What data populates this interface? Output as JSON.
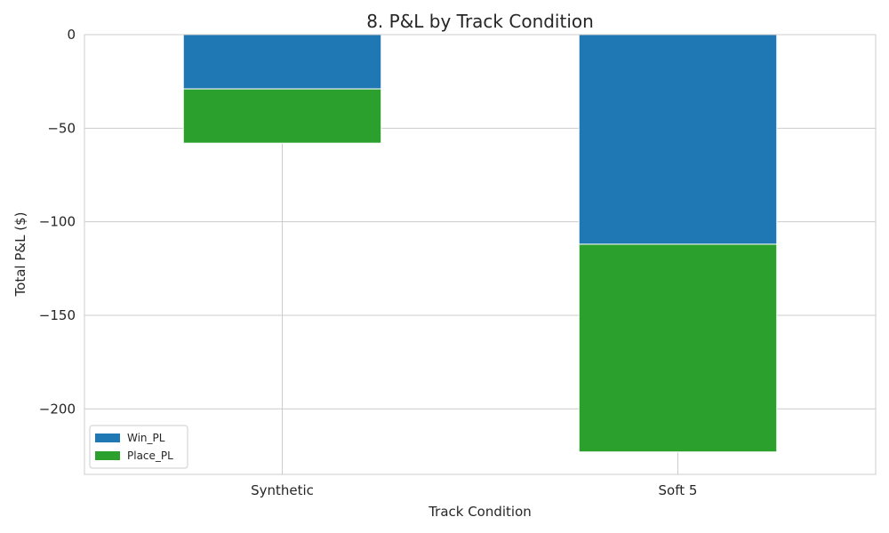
{
  "chart_data": {
    "type": "bar",
    "stacked": true,
    "title": "8. P&L by Track Condition",
    "xlabel": "Track Condition",
    "ylabel": "Total P&L ($)",
    "categories": [
      "Synthetic",
      "Soft 5"
    ],
    "series": [
      {
        "name": "Win_PL",
        "color": "#1f77b4",
        "values": [
          -29,
          -112
        ]
      },
      {
        "name": "Place_PL",
        "color": "#2ca02c",
        "values": [
          -29,
          -111
        ]
      }
    ],
    "ylim": [
      -235,
      0
    ],
    "yticks": [
      0,
      -50,
      -100,
      -150,
      -200
    ],
    "ytick_labels": [
      "0",
      "−50",
      "−100",
      "−150",
      "−200"
    ],
    "grid": true,
    "legend_position": "lower-left"
  }
}
